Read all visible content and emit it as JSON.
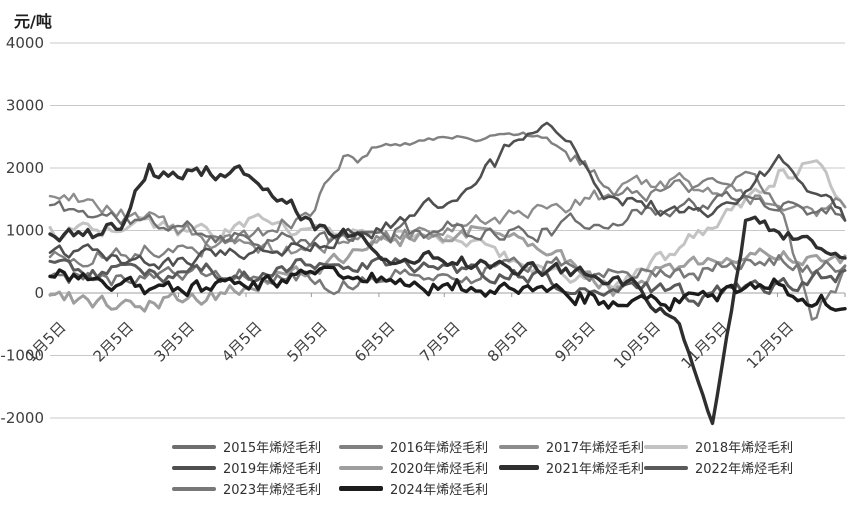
{
  "chart": {
    "unit_label": "元/吨",
    "y_ticks": [
      4000,
      3000,
      2000,
      1000,
      0,
      -1000,
      -2000
    ],
    "x_tick_labels": [
      "1月5日",
      "2月5日",
      "3月5日",
      "4月5日",
      "5月5日",
      "6月5日",
      "7月5日",
      "8月5日",
      "9月5日",
      "10月5日",
      "11月5日",
      "12月5日"
    ],
    "axis_text_color": "#3f3f3f",
    "gridline_color": "#c9c9c9",
    "zero_axis_color": "#b3b3b3"
  },
  "chart_data": {
    "type": "line",
    "title": "",
    "xlabel": "",
    "ylabel": "元/吨",
    "ylim": [
      -2000,
      4000
    ],
    "grid": "horizontal",
    "legend_position": "bottom",
    "x_axis": {
      "kind": "calendar-days",
      "range": "1月1日 – 12月31日",
      "tick_labels": [
        "1月5日",
        "2月5日",
        "3月5日",
        "4月5日",
        "5月5日",
        "6月5日",
        "7月5日",
        "8月5日",
        "9月5日",
        "10月5日",
        "11月5日",
        "12月5日"
      ]
    },
    "sampling_note": "values estimated from plot at semi-monthly anchors, Jan 1 through Dec 31 (25 points per series), unit 元/吨",
    "series": [
      {
        "name": "2015年烯烃毛利",
        "color": "#6e6e6e",
        "width": 2.4,
        "values": [
          1400,
          1300,
          1200,
          1100,
          1050,
          950,
          900,
          850,
          800,
          900,
          950,
          1000,
          1050,
          1000,
          950,
          1000,
          1100,
          1200,
          1300,
          1400,
          1450,
          1500,
          1450,
          1350,
          1300
        ]
      },
      {
        "name": "2016年烯烃毛利",
        "color": "#808080",
        "width": 2.4,
        "values": [
          600,
          550,
          650,
          700,
          750,
          800,
          900,
          1100,
          1400,
          2200,
          2350,
          2400,
          2500,
          2450,
          2550,
          2500,
          2100,
          1700,
          1550,
          1700,
          1850,
          2000,
          1500,
          -400,
          350
        ]
      },
      {
        "name": "2017年烯烃毛利",
        "color": "#8c8c8c",
        "width": 2.4,
        "values": [
          1580,
          1450,
          1300,
          1150,
          1000,
          850,
          750,
          700,
          800,
          850,
          900,
          950,
          1000,
          1100,
          1250,
          1350,
          1450,
          1550,
          1700,
          1750,
          1650,
          1550,
          1450,
          1350,
          1400
        ]
      },
      {
        "name": "2018年烯烃毛利",
        "color": "#c3c3c3",
        "width": 3,
        "values": [
          950,
          1000,
          1050,
          1020,
          980,
          1000,
          1060,
          1080,
          1040,
          1000,
          950,
          900,
          850,
          700,
          550,
          400,
          250,
          150,
          350,
          700,
          1100,
          1500,
          1900,
          2050,
          1500
        ]
      },
      {
        "name": "2019年烯烃毛利",
        "color": "#4f4f4f",
        "width": 2.6,
        "values": [
          700,
          650,
          600,
          550,
          520,
          600,
          650,
          700,
          800,
          900,
          1000,
          1200,
          1500,
          1900,
          2400,
          2700,
          2200,
          1500,
          1400,
          1300,
          1250,
          1600,
          2150,
          1700,
          1100
        ]
      },
      {
        "name": "2020年烯烃毛利",
        "color": "#9e9e9e",
        "width": 3,
        "values": [
          50,
          -150,
          -250,
          -150,
          -80,
          0,
          120,
          260,
          420,
          600,
          780,
          900,
          950,
          1000,
          900,
          700,
          400,
          100,
          200,
          350,
          450,
          550,
          600,
          550,
          480
        ]
      },
      {
        "name": "2021年烯烃毛利",
        "color": "#2f2f2f",
        "width": 3.4,
        "values": [
          850,
          900,
          1000,
          2000,
          1900,
          1950,
          1800,
          1400,
          1100,
          900,
          700,
          600,
          550,
          500,
          420,
          350,
          280,
          200,
          0,
          -500,
          -2100,
          1250,
          900,
          800,
          700
        ]
      },
      {
        "name": "2022年烯烃毛利",
        "color": "#5a5a5a",
        "width": 3,
        "values": [
          400,
          350,
          300,
          250,
          300,
          350,
          300,
          380,
          450,
          500,
          460,
          420,
          380,
          330,
          280,
          220,
          160,
          110,
          60,
          0,
          -80,
          20,
          120,
          260,
          320
        ]
      },
      {
        "name": "2023年烯烃毛利",
        "color": "#787878",
        "width": 2.6,
        "values": [
          300,
          260,
          220,
          260,
          310,
          350,
          310,
          260,
          210,
          160,
          210,
          260,
          310,
          360,
          410,
          460,
          410,
          360,
          310,
          360,
          420,
          470,
          520,
          420,
          300
        ]
      },
      {
        "name": "2024年烯烃毛利",
        "color": "#1c1c1c",
        "width": 3.4,
        "values": [
          250,
          200,
          150,
          100,
          60,
          110,
          160,
          210,
          260,
          300,
          260,
          210,
          160,
          110,
          60,
          10,
          -40,
          -90,
          -140,
          -100,
          -60,
          0,
          90,
          -60,
          -150
        ]
      }
    ]
  }
}
